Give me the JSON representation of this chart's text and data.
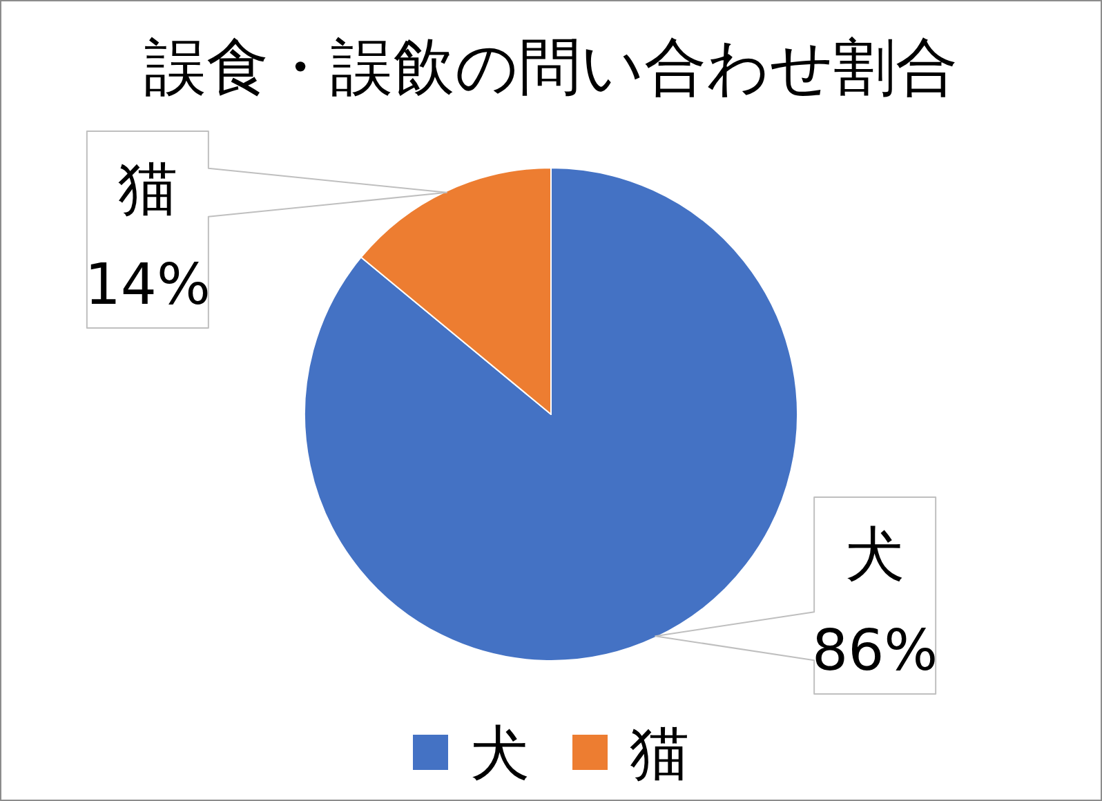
{
  "chart_data": {
    "type": "pie",
    "title": "誤食・誤飲の問い合わせ割合",
    "categories": [
      "犬",
      "猫"
    ],
    "values": [
      86,
      14
    ],
    "colors": [
      "#4472c4",
      "#ed7d31"
    ],
    "value_labels": [
      "86%",
      "14%"
    ],
    "legend": "bottom"
  }
}
